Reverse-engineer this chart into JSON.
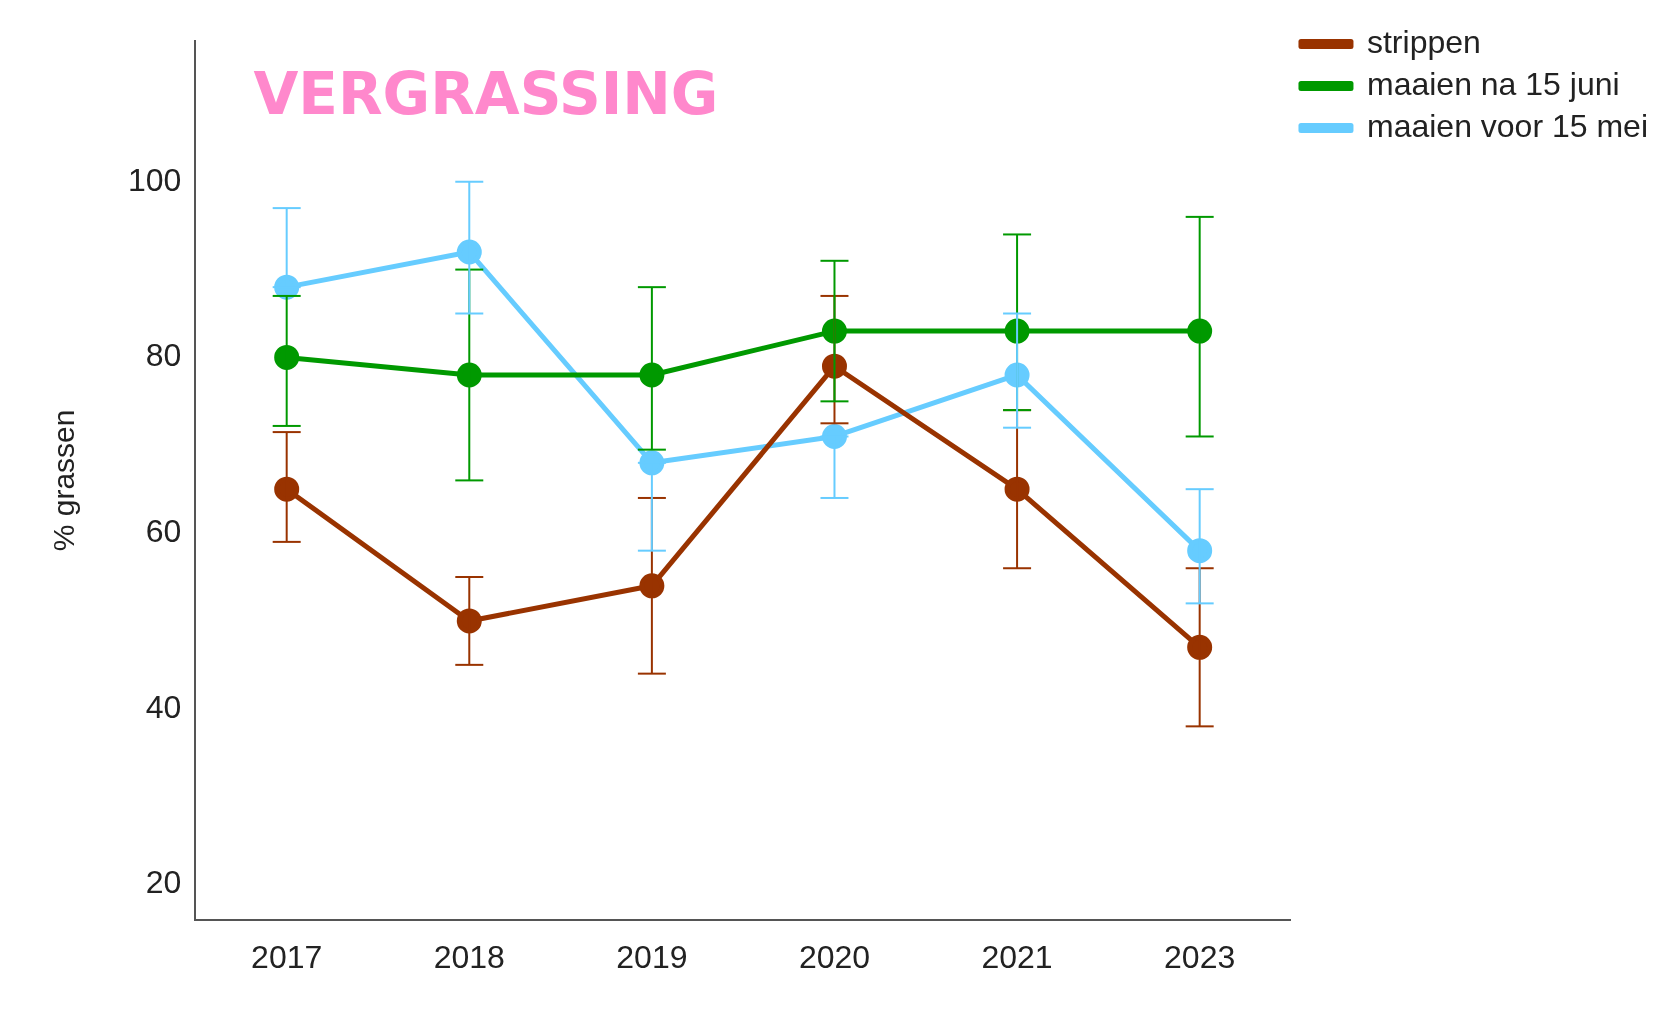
{
  "chart_data": {
    "type": "line",
    "title": "VERGRASSING",
    "ylabel": "% grassen",
    "categories": [
      "2017",
      "2018",
      "2019",
      "2020",
      "2021",
      "2023"
    ],
    "ylim": [
      16,
      116
    ],
    "yticks": [
      20,
      40,
      60,
      80,
      100
    ],
    "grid": false,
    "legend": "top right",
    "marker": "circle",
    "line_style": "solid",
    "series": [
      {
        "name": "strippen",
        "color": "#993300",
        "values": [
          65,
          50,
          54,
          79,
          65,
          47
        ],
        "errors": [
          [
            59,
            71.5
          ],
          [
            45,
            55
          ],
          [
            44,
            64
          ],
          [
            72.5,
            87
          ],
          [
            56,
            74
          ],
          [
            38,
            56
          ]
        ]
      },
      {
        "name": "maaien na 15 juni",
        "color": "#009900",
        "values": [
          80,
          78,
          78,
          83,
          83,
          83
        ],
        "errors": [
          [
            72.2,
            87
          ],
          [
            66,
            90
          ],
          [
            69.5,
            88
          ],
          [
            75,
            91
          ],
          [
            74,
            94
          ],
          [
            71,
            96
          ]
        ]
      },
      {
        "name": "maaien voor 15 mei",
        "color": "#66ccff",
        "values": [
          88,
          92,
          68,
          71,
          78,
          58
        ],
        "errors": [
          [
            88,
            97
          ],
          [
            85,
            100
          ],
          [
            58,
            68
          ],
          [
            64,
            71
          ],
          [
            72,
            85
          ],
          [
            52,
            65
          ]
        ]
      }
    ]
  }
}
